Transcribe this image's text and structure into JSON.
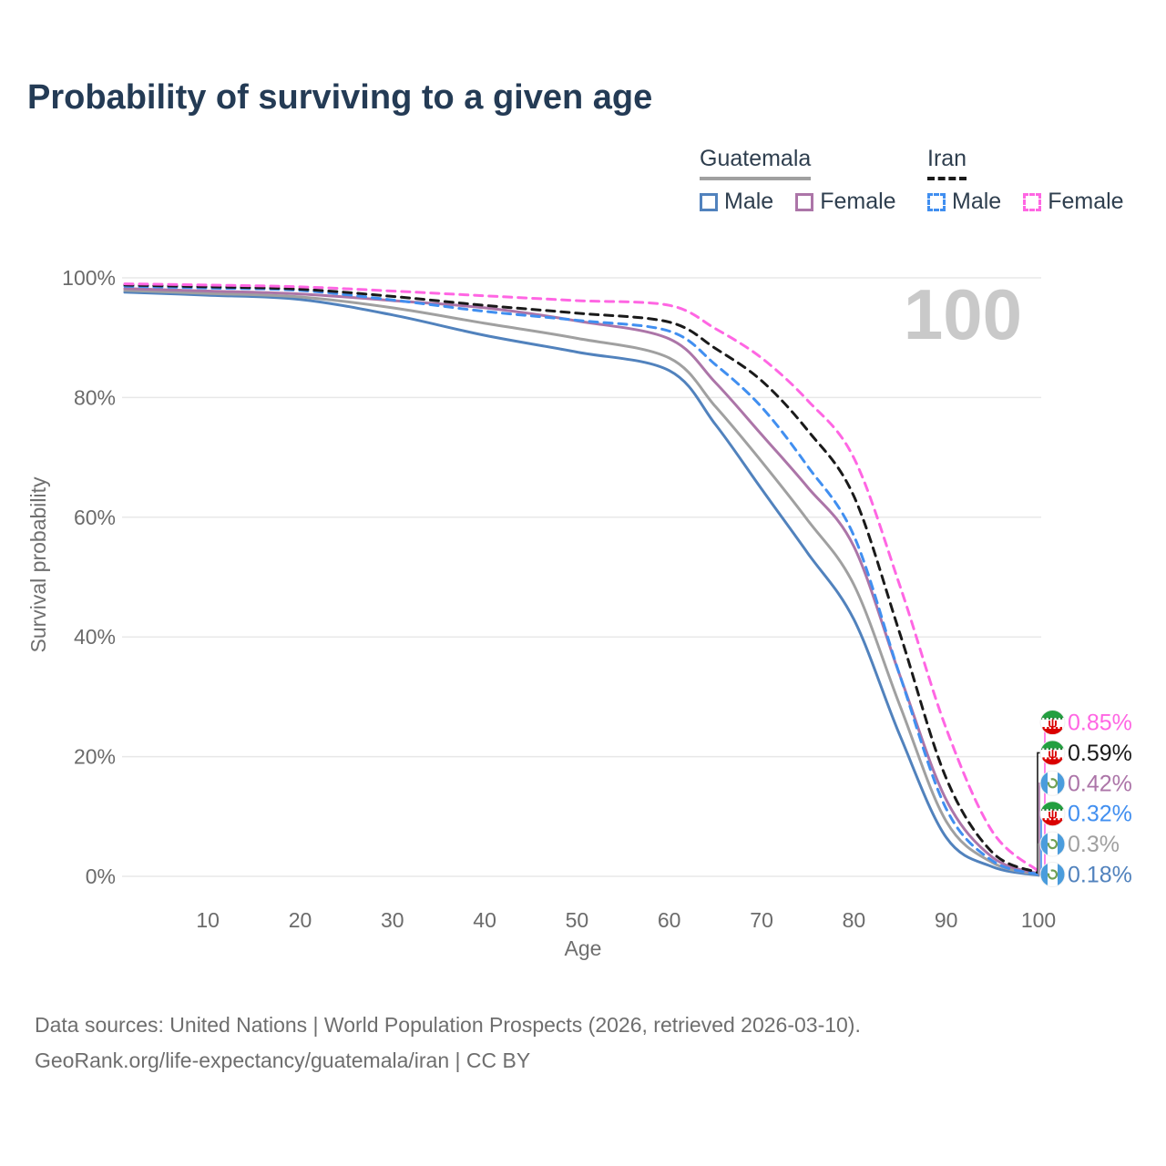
{
  "title": "Probability of surviving to a given age",
  "watermark": "100",
  "legend": {
    "groups": [
      {
        "name": "Guatemala",
        "underline_color": "#a0a0a0",
        "dashed": false,
        "items": [
          {
            "label": "Male",
            "color": "#5182bd",
            "dashed": false
          },
          {
            "label": "Female",
            "color": "#ac75a8",
            "dashed": false
          }
        ]
      },
      {
        "name": "Iran",
        "underline_color": "#1a1a1a",
        "dashed": true,
        "items": [
          {
            "label": "Male",
            "color": "#418ff0",
            "dashed": true
          },
          {
            "label": "Female",
            "color": "#ff66e3",
            "dashed": true
          }
        ]
      }
    ]
  },
  "chart_data": {
    "type": "line",
    "title": "Probability of surviving to a given age",
    "xlabel": "Age",
    "ylabel": "Survival probability",
    "xlim": [
      1,
      100
    ],
    "ylim": [
      0,
      100
    ],
    "x_ticks": [
      "10",
      "20",
      "30",
      "40",
      "50",
      "60",
      "70",
      "80",
      "90",
      "100"
    ],
    "x_tick_values": [
      10,
      20,
      30,
      40,
      50,
      60,
      70,
      80,
      90,
      100
    ],
    "y_ticks": [
      "0%",
      "20%",
      "40%",
      "60%",
      "80%",
      "100%"
    ],
    "y_tick_values": [
      0,
      20,
      40,
      60,
      80,
      100
    ],
    "grid": "horizontal",
    "legend_position": "top-right",
    "ages": [
      1,
      10,
      20,
      30,
      40,
      50,
      60,
      65,
      70,
      75,
      80,
      85,
      90,
      95,
      100
    ],
    "series": [
      {
        "name": "Guatemala Male",
        "country": "guatemala",
        "sex": "male",
        "color": "#5182bd",
        "dashed": false,
        "end_label": "0.18%",
        "values": [
          97.6,
          97.1,
          96.4,
          93.8,
          90.4,
          87.6,
          84.5,
          75.5,
          64.7,
          54.0,
          42.9,
          23.5,
          6.5,
          1.6,
          0.18
        ]
      },
      {
        "name": "Guatemala Total",
        "country": "guatemala",
        "sex": "total",
        "color": "#a0a0a0",
        "dashed": false,
        "end_label": "0.3%",
        "values": [
          97.9,
          97.4,
          96.8,
          95.0,
          92.4,
          89.9,
          86.6,
          78.5,
          69.3,
          59.5,
          48.7,
          28.5,
          9.2,
          2.3,
          0.3
        ]
      },
      {
        "name": "Guatemala Female",
        "country": "guatemala",
        "sex": "female",
        "color": "#ac75a8",
        "dashed": false,
        "end_label": "0.42%",
        "values": [
          98.2,
          97.8,
          97.3,
          96.2,
          95.0,
          92.8,
          89.8,
          82.5,
          73.8,
          65.0,
          55.1,
          33.5,
          12.8,
          3.2,
          0.42
        ]
      },
      {
        "name": "Iran Male",
        "country": "iran",
        "sex": "male",
        "color": "#418ff0",
        "dashed": true,
        "end_label": "0.32%",
        "values": [
          98.6,
          98.3,
          97.9,
          96.3,
          94.4,
          92.9,
          91.1,
          85.5,
          78.4,
          68.5,
          56.9,
          33.5,
          11.3,
          2.6,
          0.32
        ]
      },
      {
        "name": "Iran Total",
        "country": "iran",
        "sex": "total",
        "color": "#1a1a1a",
        "dashed": true,
        "end_label": "0.59%",
        "values": [
          98.8,
          98.5,
          98.1,
          96.9,
          95.4,
          94.1,
          92.6,
          88.2,
          82.8,
          74.5,
          63.5,
          40.5,
          16.4,
          4.0,
          0.59
        ]
      },
      {
        "name": "Iran Female",
        "country": "iran",
        "sex": "female",
        "color": "#ff66e3",
        "dashed": true,
        "end_label": "0.85%",
        "values": [
          99.0,
          98.8,
          98.5,
          97.8,
          97.0,
          96.2,
          95.4,
          91.5,
          86.6,
          79.5,
          69.9,
          48.5,
          24.7,
          7.5,
          0.85
        ]
      }
    ]
  },
  "end_labels": [
    {
      "value": "0.85%",
      "flag": "iran",
      "color": "#ff66e3"
    },
    {
      "value": "0.59%",
      "flag": "iran",
      "color": "#1a1a1a"
    },
    {
      "value": "0.42%",
      "flag": "guatemala",
      "color": "#ac75a8"
    },
    {
      "value": "0.32%",
      "flag": "iran",
      "color": "#418ff0"
    },
    {
      "value": "0.3%",
      "flag": "guatemala",
      "color": "#a0a0a0"
    },
    {
      "value": "0.18%",
      "flag": "guatemala",
      "color": "#5182bd"
    }
  ],
  "flag_colors": {
    "iran_green": "#239f40",
    "iran_red": "#da0000",
    "guatemala_blue": "#4a9cdc",
    "guatemala_emblem": "#6f9f55"
  },
  "footer": {
    "line1": "Data sources: United Nations | World Population Prospects (2026, retrieved 2026-03-10).",
    "line2": "GeoRank.org/life-expectancy/guatemala/iran | CC BY"
  }
}
